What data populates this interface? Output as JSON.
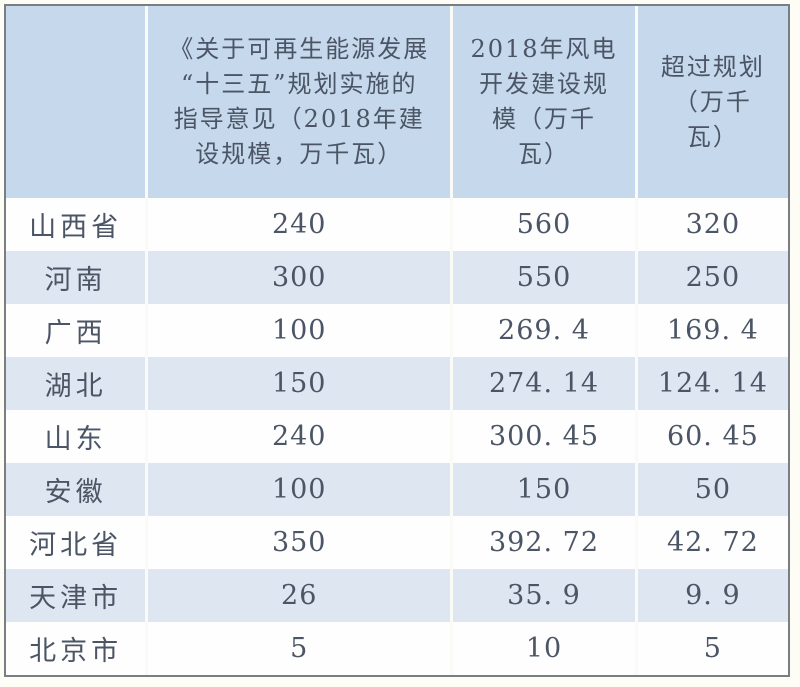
{
  "page": {
    "background_color": "#fdfdf6",
    "border_color": "#797d84",
    "header_bg_color": "#c5d8ec",
    "row_alt_bg_color": "#dde6f1",
    "row_bg_color": "#fefefe",
    "text_color": "#4b5565"
  },
  "table": {
    "header": {
      "region": "",
      "plan": "《关于可再生能源发展\n“十三五”规划实施的\n指导意见（2018年建\n设规模，万千瓦）",
      "actual": "2018年风电\n开发建设规\n模（万千\n瓦）",
      "excess": "超过规划\n（万千\n瓦）"
    },
    "rows": [
      {
        "region": "山西省",
        "plan": "240",
        "actual": "560",
        "excess": "320"
      },
      {
        "region": "河南",
        "plan": "300",
        "actual": "550",
        "excess": "250"
      },
      {
        "region": "广西",
        "plan": "100",
        "actual": "269. 4",
        "excess": "169. 4"
      },
      {
        "region": "湖北",
        "plan": "150",
        "actual": "274. 14",
        "excess": "124. 14"
      },
      {
        "region": "山东",
        "plan": "240",
        "actual": "300. 45",
        "excess": "60. 45"
      },
      {
        "region": "安徽",
        "plan": "100",
        "actual": "150",
        "excess": "50"
      },
      {
        "region": "河北省",
        "plan": "350",
        "actual": "392. 72",
        "excess": "42. 72"
      },
      {
        "region": "天津市",
        "plan": "26",
        "actual": "35. 9",
        "excess": "9. 9"
      },
      {
        "region": "北京市",
        "plan": "5",
        "actual": "10",
        "excess": "5"
      }
    ]
  },
  "chart_data": {
    "type": "table",
    "title": "",
    "columns": [
      "",
      "《关于可再生能源发展“十三五”规划实施的指导意见（2018年建设规模，万千瓦）",
      "2018年风电开发建设规模（万千瓦）",
      "超过规划（万千瓦）"
    ],
    "rows": [
      [
        "山西省",
        240,
        560,
        320
      ],
      [
        "河南",
        300,
        550,
        250
      ],
      [
        "广西",
        100,
        269.4,
        169.4
      ],
      [
        "湖北",
        150,
        274.14,
        124.14
      ],
      [
        "山东",
        240,
        300.45,
        60.45
      ],
      [
        "安徽",
        100,
        150,
        50
      ],
      [
        "河北省",
        350,
        392.72,
        42.72
      ],
      [
        "天津市",
        26,
        35.9,
        9.9
      ],
      [
        "北京市",
        5,
        10,
        5
      ]
    ],
    "layout": {
      "row_striping": "odd rows white, even rows light blue",
      "header_background": "#c5d8ec",
      "units": "万千瓦"
    }
  }
}
